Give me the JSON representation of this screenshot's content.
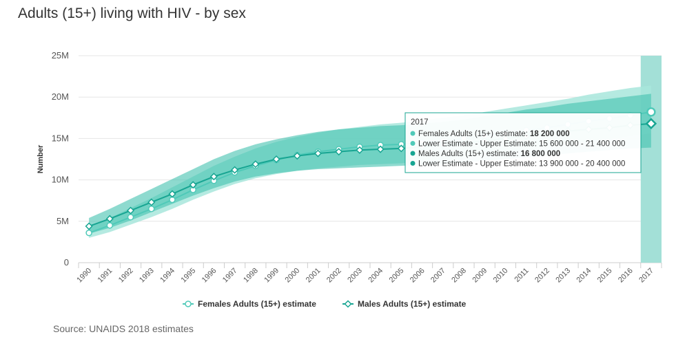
{
  "title": "Adults (15+) living with HIV - by sex",
  "source": "Source: UNAIDS 2018 estimates",
  "colors": {
    "female": "#4fc9b8",
    "female_band": "#a8e6dc",
    "male": "#17a592",
    "male_band": "#43c2af",
    "highlight": "#a3e0d7",
    "grid": "#e6e6e6",
    "axis": "#cccccc"
  },
  "chart_data": {
    "type": "line",
    "title": "Adults (15+) living with HIV - by sex",
    "xlabel": "",
    "ylabel": "Number",
    "ylim": [
      0,
      25000000
    ],
    "y_ticks": [
      0,
      5000000,
      10000000,
      15000000,
      20000000,
      25000000
    ],
    "y_tick_labels": [
      "0",
      "5M",
      "10M",
      "15M",
      "20M",
      "25M"
    ],
    "grid": true,
    "legend_position": "bottom-center",
    "x": [
      1990,
      1991,
      1992,
      1993,
      1994,
      1995,
      1996,
      1997,
      1998,
      1999,
      2000,
      2001,
      2002,
      2003,
      2004,
      2005,
      2006,
      2007,
      2008,
      2009,
      2010,
      2011,
      2012,
      2013,
      2014,
      2015,
      2016,
      2017
    ],
    "x_tick_labels": [
      "1990",
      "1991",
      "1992",
      "1993",
      "1994",
      "1995",
      "1996",
      "1997",
      "1998",
      "1999",
      "2000",
      "2001",
      "2002",
      "2003",
      "2004",
      "2005",
      "2006",
      "2007",
      "2008",
      "2009",
      "2010",
      "2011",
      "2012",
      "2013",
      "2014",
      "2015",
      "2016",
      "2017"
    ],
    "series": [
      {
        "name": "Females Adults (15+) estimate",
        "values": [
          3600000,
          4500000,
          5500000,
          6500000,
          7600000,
          8800000,
          9900000,
          10900000,
          11700000,
          12400000,
          13000000,
          13400000,
          13700000,
          14000000,
          14200000,
          14300000,
          14500000,
          14700000,
          15000000,
          15300000,
          15600000,
          16000000,
          16300000,
          16700000,
          17100000,
          17400000,
          17800000,
          18200000
        ],
        "lower": [
          3000000,
          3700000,
          4600000,
          5500000,
          6500000,
          7600000,
          8600000,
          9500000,
          10200000,
          10700000,
          11100000,
          11400000,
          11600000,
          11800000,
          11900000,
          12000000,
          12200000,
          12400000,
          12700000,
          13000000,
          13300000,
          13600000,
          14000000,
          14400000,
          14700000,
          15000000,
          15300000,
          15600000
        ],
        "upper": [
          4300000,
          5400000,
          6600000,
          7800000,
          9100000,
          10400000,
          11700000,
          12800000,
          13800000,
          14600000,
          15200000,
          15700000,
          16100000,
          16400000,
          16700000,
          16900000,
          17200000,
          17500000,
          17800000,
          18200000,
          18600000,
          19000000,
          19400000,
          19800000,
          20300000,
          20700000,
          21100000,
          21400000
        ]
      },
      {
        "name": "Males Adults (15+) estimate",
        "values": [
          4400000,
          5300000,
          6300000,
          7300000,
          8300000,
          9400000,
          10400000,
          11200000,
          11900000,
          12500000,
          12900000,
          13200000,
          13400000,
          13600000,
          13700000,
          13800000,
          14000000,
          14200000,
          14400000,
          14700000,
          15000000,
          15300000,
          15600000,
          15900000,
          16100000,
          16300000,
          16600000,
          16800000
        ],
        "lower": [
          3500000,
          4200000,
          5100000,
          6100000,
          7100000,
          8100000,
          9000000,
          9800000,
          10400000,
          10800000,
          11100000,
          11300000,
          11400000,
          11500000,
          11600000,
          11700000,
          11800000,
          11900000,
          12100000,
          12300000,
          12500000,
          12700000,
          12900000,
          13200000,
          13400000,
          13600000,
          13800000,
          13900000
        ],
        "upper": [
          5400000,
          6500000,
          7700000,
          8900000,
          10100000,
          11300000,
          12500000,
          13500000,
          14300000,
          14900000,
          15400000,
          15800000,
          16100000,
          16300000,
          16500000,
          16600000,
          16800000,
          17000000,
          17300000,
          17700000,
          18100000,
          18500000,
          18800000,
          19200000,
          19500000,
          19800000,
          20100000,
          20400000
        ]
      }
    ],
    "legend": [
      "Females Adults (15+) estimate",
      "Males Adults (15+) estimate"
    ],
    "highlight_year": 2017
  },
  "tooltip": {
    "header": "2017",
    "rows": [
      {
        "label": "Females Adults (15+) estimate: ",
        "value": "18 200 000",
        "bold": true
      },
      {
        "label": "Lower Estimate - Upper Estimate: 15 600 000 - 21 400 000",
        "value": "",
        "bold": false
      },
      {
        "label": "Males Adults (15+) estimate: ",
        "value": "16 800 000",
        "bold": true
      },
      {
        "label": "Lower Estimate - Upper Estimate: 13 900 000 - 20 400 000",
        "value": "",
        "bold": false
      }
    ]
  }
}
